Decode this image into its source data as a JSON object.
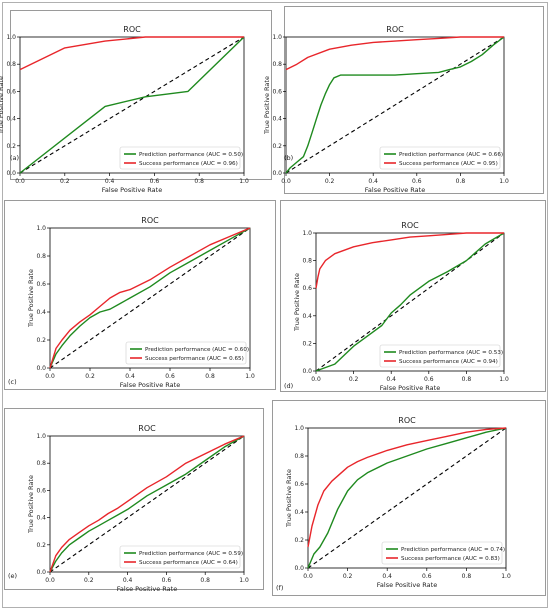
{
  "colors": {
    "success": "#e8262b",
    "prediction": "#1f8a1f",
    "diagonal": "#000000"
  },
  "chart_data": [
    {
      "panel_label": "(a)",
      "type": "line",
      "title": "ROC",
      "xlabel": "False Positive Rate",
      "ylabel": "True Positive Rate",
      "xlim": [
        0,
        1
      ],
      "ylim": [
        0,
        1
      ],
      "xticks": [
        "0.0",
        "0.2",
        "0.4",
        "0.6",
        "0.8",
        "1.0"
      ],
      "yticks": [
        "0.0",
        "0.2",
        "0.4",
        "0.6",
        "0.8",
        "1.0"
      ],
      "legend_position": "bottom-right",
      "series": [
        {
          "name": "Prediction performance (AUC = 0.50)",
          "color": "#1f8a1f",
          "x": [
            0,
            0.38,
            0.56,
            0.75,
            1.0
          ],
          "y": [
            0,
            0.49,
            0.56,
            0.6,
            1.0
          ]
        },
        {
          "name": "Success performance (AUC = 0.96)",
          "color": "#e8262b",
          "x": [
            0,
            0.2,
            0.38,
            0.56,
            1.0
          ],
          "y": [
            0.76,
            0.92,
            0.97,
            1.0,
            1.0
          ]
        }
      ]
    },
    {
      "panel_label": "(b)",
      "type": "line",
      "title": "ROC",
      "xlabel": "False Positive Rate",
      "ylabel": "True Positive Rate",
      "xlim": [
        0,
        1
      ],
      "ylim": [
        0,
        1
      ],
      "xticks": [
        "0.0",
        "0.2",
        "0.4",
        "0.6",
        "0.8",
        "1.0"
      ],
      "yticks": [
        "0.0",
        "0.2",
        "0.4",
        "0.6",
        "0.8",
        "1.0"
      ],
      "legend_position": "bottom-right",
      "series": [
        {
          "name": "Prediction performance (AUC = 0.66)",
          "color": "#1f8a1f",
          "x": [
            0,
            0.02,
            0.05,
            0.08,
            0.1,
            0.12,
            0.14,
            0.16,
            0.18,
            0.2,
            0.22,
            0.25,
            0.3,
            0.4,
            0.5,
            0.6,
            0.7,
            0.75,
            0.8,
            0.85,
            0.9,
            0.95,
            1.0
          ],
          "y": [
            0,
            0.04,
            0.08,
            0.12,
            0.2,
            0.3,
            0.4,
            0.5,
            0.58,
            0.65,
            0.7,
            0.72,
            0.72,
            0.72,
            0.72,
            0.73,
            0.74,
            0.76,
            0.78,
            0.82,
            0.87,
            0.94,
            1.0
          ]
        },
        {
          "name": "Success performance (AUC = 0.95)",
          "color": "#e8262b",
          "x": [
            0,
            0.05,
            0.1,
            0.2,
            0.3,
            0.4,
            0.5,
            0.6,
            0.7,
            0.8,
            0.9,
            1.0
          ],
          "y": [
            0.76,
            0.8,
            0.85,
            0.91,
            0.94,
            0.96,
            0.97,
            0.98,
            0.99,
            1.0,
            1.0,
            1.0
          ]
        }
      ]
    },
    {
      "panel_label": "(c)",
      "type": "line",
      "title": "ROC",
      "xlabel": "False Positive Rate",
      "ylabel": "True Positive Rate",
      "xlim": [
        0,
        1
      ],
      "ylim": [
        0,
        1
      ],
      "xticks": [
        "0.0",
        "0.2",
        "0.4",
        "0.6",
        "0.8",
        "1.0"
      ],
      "yticks": [
        "0.0",
        "0.2",
        "0.4",
        "0.6",
        "0.8",
        "1.0"
      ],
      "legend_position": "bottom-right",
      "series": [
        {
          "name": "Prediction performance (AUC = 0.60)",
          "color": "#1f8a1f",
          "x": [
            0,
            0.03,
            0.06,
            0.1,
            0.15,
            0.2,
            0.25,
            0.3,
            0.35,
            0.4,
            0.5,
            0.6,
            0.7,
            0.8,
            0.9,
            1.0
          ],
          "y": [
            0,
            0.1,
            0.16,
            0.23,
            0.3,
            0.36,
            0.4,
            0.42,
            0.46,
            0.5,
            0.58,
            0.68,
            0.76,
            0.84,
            0.92,
            1.0
          ]
        },
        {
          "name": "Success performance (AUC = 0.65)",
          "color": "#e8262b",
          "x": [
            0,
            0.03,
            0.06,
            0.1,
            0.15,
            0.2,
            0.25,
            0.3,
            0.35,
            0.4,
            0.5,
            0.6,
            0.7,
            0.8,
            0.9,
            1.0
          ],
          "y": [
            0,
            0.14,
            0.2,
            0.27,
            0.33,
            0.38,
            0.44,
            0.5,
            0.54,
            0.56,
            0.63,
            0.72,
            0.8,
            0.88,
            0.94,
            1.0
          ]
        }
      ]
    },
    {
      "panel_label": "(d)",
      "type": "line",
      "title": "ROC",
      "xlabel": "False Positive Rate",
      "ylabel": "True Positive Rate",
      "xlim": [
        0,
        1
      ],
      "ylim": [
        0,
        1
      ],
      "xticks": [
        "0.0",
        "0.2",
        "0.4",
        "0.6",
        "0.8",
        "1.0"
      ],
      "yticks": [
        "0.0",
        "0.2",
        "0.4",
        "0.6",
        "0.8",
        "1.0"
      ],
      "legend_position": "bottom-right",
      "series": [
        {
          "name": "Prediction performance (AUC = 0.53)",
          "color": "#1f8a1f",
          "x": [
            0,
            0.1,
            0.2,
            0.3,
            0.35,
            0.4,
            0.45,
            0.5,
            0.55,
            0.6,
            0.7,
            0.8,
            0.9,
            1.0
          ],
          "y": [
            0,
            0.05,
            0.18,
            0.28,
            0.33,
            0.42,
            0.48,
            0.55,
            0.6,
            0.65,
            0.72,
            0.8,
            0.92,
            1.0
          ]
        },
        {
          "name": "Success performance (AUC = 0.94)",
          "color": "#e8262b",
          "x": [
            0,
            0.01,
            0.02,
            0.05,
            0.1,
            0.2,
            0.3,
            0.4,
            0.5,
            0.6,
            0.7,
            0.8,
            0.9,
            1.0
          ],
          "y": [
            0.6,
            0.68,
            0.74,
            0.8,
            0.85,
            0.9,
            0.93,
            0.95,
            0.97,
            0.98,
            0.99,
            1.0,
            1.0,
            1.0
          ]
        }
      ]
    },
    {
      "panel_label": "(e)",
      "type": "line",
      "title": "ROC",
      "xlabel": "False Positive Rate",
      "ylabel": "True Positive Rate",
      "xlim": [
        0,
        1
      ],
      "ylim": [
        0,
        1
      ],
      "xticks": [
        "0.0",
        "0.2",
        "0.4",
        "0.6",
        "0.8",
        "1.0"
      ],
      "yticks": [
        "0.0",
        "0.2",
        "0.4",
        "0.6",
        "0.8",
        "1.0"
      ],
      "legend_position": "bottom-right",
      "series": [
        {
          "name": "Prediction performance (AUC = 0.59)",
          "color": "#1f8a1f",
          "x": [
            0,
            0.03,
            0.06,
            0.1,
            0.15,
            0.2,
            0.25,
            0.3,
            0.35,
            0.4,
            0.5,
            0.6,
            0.7,
            0.8,
            0.9,
            1.0
          ],
          "y": [
            0,
            0.08,
            0.14,
            0.2,
            0.25,
            0.3,
            0.34,
            0.38,
            0.42,
            0.46,
            0.56,
            0.64,
            0.72,
            0.82,
            0.92,
            1.0
          ]
        },
        {
          "name": "Success performance (AUC = 0.64)",
          "color": "#e8262b",
          "x": [
            0,
            0.03,
            0.06,
            0.1,
            0.15,
            0.2,
            0.25,
            0.3,
            0.35,
            0.4,
            0.5,
            0.6,
            0.7,
            0.8,
            0.9,
            1.0
          ],
          "y": [
            0,
            0.12,
            0.18,
            0.24,
            0.29,
            0.34,
            0.38,
            0.43,
            0.47,
            0.52,
            0.62,
            0.7,
            0.8,
            0.87,
            0.94,
            1.0
          ]
        }
      ]
    },
    {
      "panel_label": "(f)",
      "type": "line",
      "title": "ROC",
      "xlabel": "False Positive Rate",
      "ylabel": "True Positive Rate",
      "xlim": [
        0,
        1
      ],
      "ylim": [
        0,
        1
      ],
      "xticks": [
        "0.0",
        "0.2",
        "0.4",
        "0.6",
        "0.8",
        "1.0"
      ],
      "yticks": [
        "0.0",
        "0.2",
        "0.4",
        "0.6",
        "0.8",
        "1.0"
      ],
      "legend_position": "bottom-right",
      "series": [
        {
          "name": "Prediction performance (AUC = 0.74)",
          "color": "#1f8a1f",
          "x": [
            0,
            0.03,
            0.06,
            0.1,
            0.15,
            0.2,
            0.25,
            0.3,
            0.4,
            0.5,
            0.6,
            0.7,
            0.8,
            0.9,
            1.0
          ],
          "y": [
            0,
            0.1,
            0.15,
            0.25,
            0.42,
            0.55,
            0.63,
            0.68,
            0.75,
            0.8,
            0.85,
            0.89,
            0.93,
            0.97,
            1.0
          ]
        },
        {
          "name": "Success performance (AUC = 0.83)",
          "color": "#e8262b",
          "x": [
            0,
            0.02,
            0.05,
            0.08,
            0.12,
            0.16,
            0.2,
            0.25,
            0.3,
            0.4,
            0.5,
            0.6,
            0.7,
            0.8,
            0.9,
            1.0
          ],
          "y": [
            0.15,
            0.3,
            0.45,
            0.55,
            0.62,
            0.67,
            0.72,
            0.76,
            0.79,
            0.84,
            0.88,
            0.91,
            0.94,
            0.97,
            0.99,
            1.0
          ]
        }
      ]
    }
  ]
}
